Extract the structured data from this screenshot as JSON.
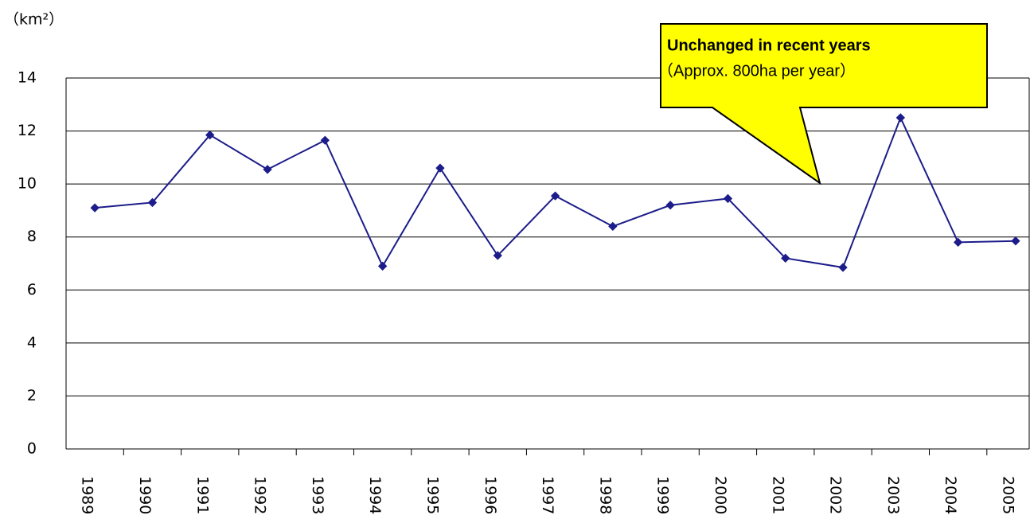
{
  "chart_data": {
    "type": "line",
    "y_label": "（km²）",
    "annotation": {
      "title": "Unchanged in recent years",
      "text": "（Approx. 800ha per year）"
    },
    "categories": [
      "1989",
      "1990",
      "1991",
      "1992",
      "1993",
      "1994",
      "1995",
      "1996",
      "1997",
      "1998",
      "1999",
      "2000",
      "2001",
      "2002",
      "2003",
      "2004",
      "2005"
    ],
    "series": [
      {
        "color": "#1c1c8a",
        "values": [
          9.1,
          9.3,
          11.85,
          10.55,
          11.65,
          6.9,
          10.6,
          7.3,
          9.55,
          8.4,
          9.2,
          9.45,
          7.2,
          6.85,
          12.5,
          7.8,
          7.85
        ]
      }
    ],
    "ylim": [
      0,
      14
    ],
    "yticks": [
      0,
      2,
      4,
      6,
      8,
      10,
      12,
      14
    ],
    "grid": true
  }
}
